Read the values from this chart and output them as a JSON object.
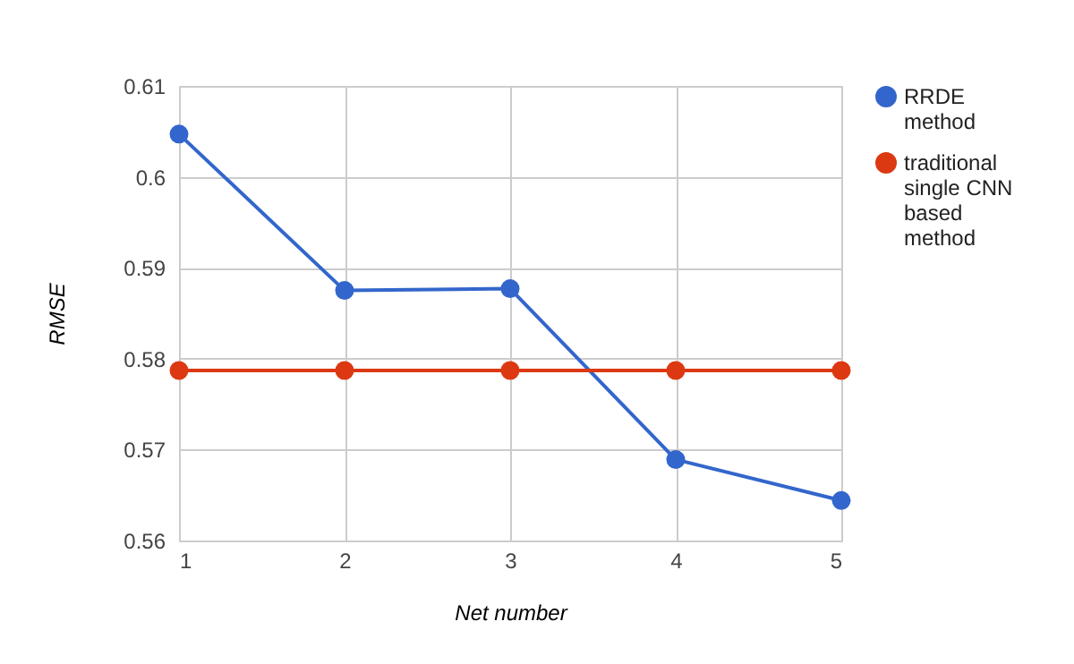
{
  "chart_data": {
    "type": "line",
    "xlabel": "Net number",
    "ylabel": "RMSE",
    "x": [
      1,
      2,
      3,
      4,
      5
    ],
    "series": [
      {
        "name": "RRDE method",
        "color": "#3366cc",
        "values": [
          0.6047,
          0.5875,
          0.5877,
          0.5689,
          0.5644
        ]
      },
      {
        "name": "traditional single CNN based method",
        "color": "#dc3912",
        "values": [
          0.5787,
          0.5787,
          0.5787,
          0.5787,
          0.5787
        ]
      }
    ],
    "xlim": [
      1,
      5
    ],
    "xticks": [
      1,
      2,
      3,
      4,
      5
    ],
    "ylim": [
      0.56,
      0.61
    ],
    "yticks": [
      0.56,
      0.57,
      0.58,
      0.59,
      0.6,
      0.61
    ],
    "grid": true,
    "legend": "top right",
    "marker": "circle",
    "line_style": "solid"
  }
}
